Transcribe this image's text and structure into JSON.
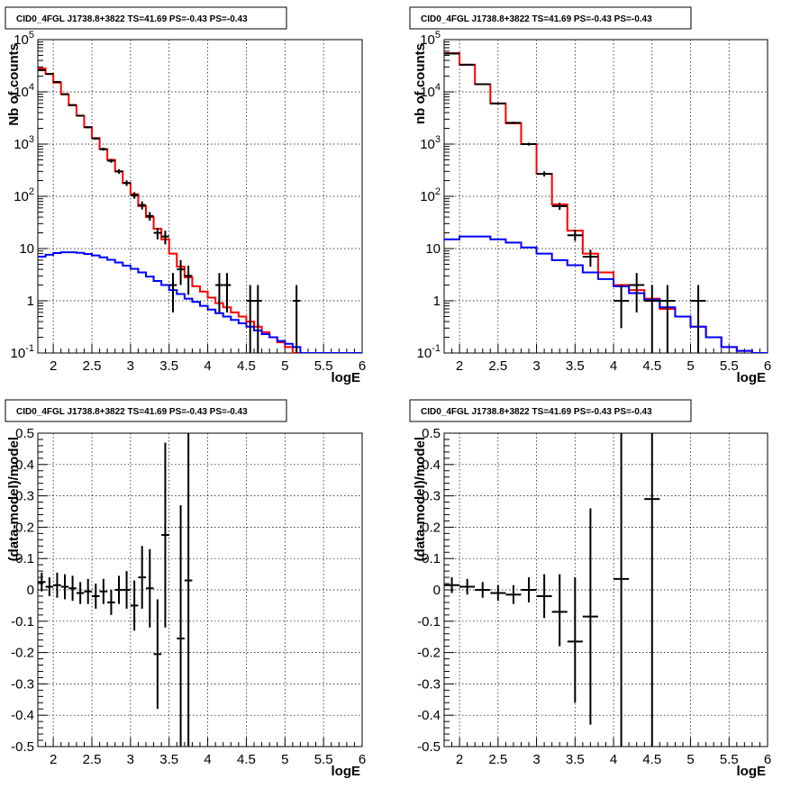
{
  "chart_data": [
    {
      "type": "line",
      "title": "CID0_4FGL J1738.8+3822 TS=41.69 PS=-0.43 PS=-0.43",
      "xlabel": "logE",
      "ylabel": "Nb of counts",
      "xlim": [
        1.8,
        6
      ],
      "ylim": [
        0.1,
        100000
      ],
      "yscale": "log",
      "grid": true,
      "x_ticks": [
        "2",
        "2.5",
        "3",
        "3.5",
        "4",
        "4.5",
        "5",
        "5.5",
        "6"
      ],
      "y_ticks": [
        "10^-1",
        "1",
        "10",
        "10^2",
        "10^3",
        "10^4",
        "10^5"
      ],
      "series": [
        {
          "color": "#ff0000",
          "style": "histogram",
          "bin_edges": [
            1.8,
            1.9,
            2.0,
            2.1,
            2.2,
            2.3,
            2.4,
            2.5,
            2.6,
            2.7,
            2.8,
            2.9,
            3.0,
            3.1,
            3.2,
            3.3,
            3.4,
            3.5,
            3.6,
            3.7,
            3.8,
            3.9,
            4.0,
            4.1,
            4.2,
            4.3,
            4.4,
            4.5,
            4.6,
            4.7,
            4.8,
            4.9,
            5.0,
            5.1,
            5.2,
            5.3,
            5.4,
            5.5,
            5.6,
            5.7,
            5.8,
            5.9,
            6.0
          ],
          "values": [
            28000,
            22000,
            15000,
            9000,
            5500,
            3500,
            2100,
            1300,
            800,
            500,
            300,
            180,
            110,
            65,
            40,
            24,
            15,
            8,
            4.5,
            2.8,
            1.9,
            1.5,
            1.15,
            0.9,
            0.75,
            0.6,
            0.5,
            0.4,
            0.32,
            0.25,
            0.2,
            0.16,
            0.13,
            0.1,
            0.1,
            0.1,
            0.1,
            0.1,
            0.1,
            0.1,
            0.1,
            0.1
          ]
        },
        {
          "color": "#0000ff",
          "style": "histogram",
          "bin_edges": [
            1.8,
            1.9,
            2.0,
            2.1,
            2.2,
            2.3,
            2.4,
            2.5,
            2.6,
            2.7,
            2.8,
            2.9,
            3.0,
            3.1,
            3.2,
            3.3,
            3.4,
            3.5,
            3.6,
            3.7,
            3.8,
            3.9,
            4.0,
            4.1,
            4.2,
            4.3,
            4.4,
            4.5,
            4.6,
            4.7,
            4.8,
            4.9,
            5.0,
            5.1,
            5.2,
            5.3,
            5.4,
            5.5,
            5.6,
            5.7,
            5.8,
            5.9,
            6.0
          ],
          "values": [
            7,
            7.6,
            8.2,
            8.5,
            8.5,
            8.3,
            7.9,
            7.4,
            6.8,
            6.1,
            5.4,
            4.7,
            4.1,
            3.5,
            2.9,
            2.4,
            2.0,
            1.6,
            1.35,
            1.1,
            0.95,
            0.8,
            0.68,
            0.58,
            0.5,
            0.43,
            0.37,
            0.32,
            0.27,
            0.23,
            0.2,
            0.17,
            0.15,
            0.13,
            0.1,
            0.1,
            0.1,
            0.1,
            0.1,
            0.1,
            0.1,
            0.1
          ]
        },
        {
          "color": "#000000",
          "style": "errorbar",
          "points": [
            {
              "x": 1.85,
              "y": 26000,
              "xerr": 0.05,
              "ylo": 25800,
              "yhi": 26200
            },
            {
              "x": 1.95,
              "y": 22000,
              "xerr": 0.05,
              "ylo": 21800,
              "yhi": 22200
            },
            {
              "x": 2.05,
              "y": 15500,
              "xerr": 0.05,
              "ylo": 15300,
              "yhi": 15700
            },
            {
              "x": 2.15,
              "y": 9000,
              "xerr": 0.05,
              "ylo": 8800,
              "yhi": 9200
            },
            {
              "x": 2.25,
              "y": 5600,
              "xerr": 0.05,
              "ylo": 5450,
              "yhi": 5750
            },
            {
              "x": 2.35,
              "y": 3500,
              "xerr": 0.05,
              "ylo": 3380,
              "yhi": 3620
            },
            {
              "x": 2.45,
              "y": 2100,
              "xerr": 0.05,
              "ylo": 2000,
              "yhi": 2200
            },
            {
              "x": 2.55,
              "y": 1280,
              "xerr": 0.05,
              "ylo": 1210,
              "yhi": 1350
            },
            {
              "x": 2.65,
              "y": 800,
              "xerr": 0.05,
              "ylo": 750,
              "yhi": 850
            },
            {
              "x": 2.75,
              "y": 480,
              "xerr": 0.05,
              "ylo": 440,
              "yhi": 520
            },
            {
              "x": 2.85,
              "y": 300,
              "xerr": 0.05,
              "ylo": 270,
              "yhi": 330
            },
            {
              "x": 2.95,
              "y": 180,
              "xerr": 0.05,
              "ylo": 158,
              "yhi": 202
            },
            {
              "x": 3.05,
              "y": 105,
              "xerr": 0.05,
              "ylo": 90,
              "yhi": 120
            },
            {
              "x": 3.15,
              "y": 68,
              "xerr": 0.05,
              "ylo": 56,
              "yhi": 80
            },
            {
              "x": 3.25,
              "y": 42,
              "xerr": 0.05,
              "ylo": 34,
              "yhi": 50
            },
            {
              "x": 3.35,
              "y": 20,
              "xerr": 0.05,
              "ylo": 15,
              "yhi": 25
            },
            {
              "x": 3.45,
              "y": 17,
              "xerr": 0.05,
              "ylo": 12,
              "yhi": 22
            },
            {
              "x": 3.55,
              "y": 2,
              "xerr": 0.05,
              "ylo": 0.6,
              "yhi": 3.4
            },
            {
              "x": 3.65,
              "y": 4,
              "xerr": 0.05,
              "ylo": 2,
              "yhi": 6
            },
            {
              "x": 3.75,
              "y": 3,
              "xerr": 0.05,
              "ylo": 1.3,
              "yhi": 4.7
            },
            {
              "x": 4.15,
              "y": 2,
              "xerr": 0.05,
              "ylo": 0.6,
              "yhi": 3.4
            },
            {
              "x": 4.25,
              "y": 2,
              "xerr": 0.05,
              "ylo": 0.6,
              "yhi": 3.4
            },
            {
              "x": 4.55,
              "y": 1,
              "xerr": 0.05,
              "ylo": 0.1,
              "yhi": 2
            },
            {
              "x": 4.65,
              "y": 1,
              "xerr": 0.05,
              "ylo": 0.1,
              "yhi": 2
            },
            {
              "x": 5.15,
              "y": 1,
              "xerr": 0.05,
              "ylo": 0.1,
              "yhi": 2
            }
          ]
        }
      ]
    },
    {
      "type": "line",
      "title": "CID0_4FGL J1738.8+3822 TS=41.69 PS=-0.43 PS=-0.43",
      "xlabel": "logE",
      "ylabel": "nb of counts",
      "xlim": [
        1.8,
        6
      ],
      "ylim": [
        0.1,
        100000
      ],
      "yscale": "log",
      "grid": true,
      "x_ticks": [
        "2",
        "2.5",
        "3",
        "3.5",
        "4",
        "4.5",
        "5",
        "5.5",
        "6"
      ],
      "y_ticks": [
        "10^-1",
        "1",
        "10",
        "10^2",
        "10^3",
        "10^4",
        "10^5"
      ],
      "series": [
        {
          "color": "#ff0000",
          "style": "histogram",
          "bin_edges": [
            1.8,
            2.0,
            2.2,
            2.4,
            2.6,
            2.8,
            3.0,
            3.2,
            3.4,
            3.6,
            3.8,
            4.0,
            4.2,
            4.4,
            4.6,
            4.8,
            5.0,
            5.2,
            5.4,
            5.6,
            5.8,
            6.0
          ],
          "values": [
            55000,
            33000,
            14000,
            6000,
            2500,
            1000,
            270,
            70,
            22,
            8,
            3.5,
            2,
            1.6,
            1.1,
            0.7,
            0.5,
            0.32,
            0.2,
            0.13,
            0.11,
            0.1
          ]
        },
        {
          "color": "#0000ff",
          "style": "histogram",
          "bin_edges": [
            1.8,
            2.0,
            2.2,
            2.4,
            2.6,
            2.8,
            3.0,
            3.2,
            3.4,
            3.6,
            3.8,
            4.0,
            4.2,
            4.4,
            4.6,
            4.8,
            5.0,
            5.2,
            5.4,
            5.6,
            5.8,
            6.0
          ],
          "values": [
            15,
            17,
            17,
            15,
            13,
            10.5,
            8,
            6,
            4.8,
            3.5,
            2.6,
            1.9,
            1.4,
            1.05,
            0.75,
            0.5,
            0.32,
            0.2,
            0.13,
            0.11,
            0.1
          ]
        },
        {
          "color": "#000000",
          "style": "errorbar",
          "points": [
            {
              "x": 1.9,
              "y": 54000,
              "xerr": 0.1,
              "ylo": 53500,
              "yhi": 54500
            },
            {
              "x": 2.1,
              "y": 33000,
              "xerr": 0.1,
              "ylo": 32600,
              "yhi": 33400
            },
            {
              "x": 2.3,
              "y": 14000,
              "xerr": 0.1,
              "ylo": 13700,
              "yhi": 14300
            },
            {
              "x": 2.5,
              "y": 6000,
              "xerr": 0.1,
              "ylo": 5800,
              "yhi": 6200
            },
            {
              "x": 2.7,
              "y": 2550,
              "xerr": 0.1,
              "ylo": 2430,
              "yhi": 2670
            },
            {
              "x": 2.9,
              "y": 1000,
              "xerr": 0.1,
              "ylo": 940,
              "yhi": 1060
            },
            {
              "x": 3.1,
              "y": 270,
              "xerr": 0.1,
              "ylo": 240,
              "yhi": 300
            },
            {
              "x": 3.3,
              "y": 65,
              "xerr": 0.1,
              "ylo": 55,
              "yhi": 75
            },
            {
              "x": 3.5,
              "y": 18,
              "xerr": 0.1,
              "ylo": 14,
              "yhi": 23
            },
            {
              "x": 3.7,
              "y": 7,
              "xerr": 0.1,
              "ylo": 4.5,
              "yhi": 9.5
            },
            {
              "x": 4.1,
              "y": 1,
              "xerr": 0.1,
              "ylo": 0.3,
              "yhi": 2
            },
            {
              "x": 4.3,
              "y": 2,
              "xerr": 0.1,
              "ylo": 0.6,
              "yhi": 3.4
            },
            {
              "x": 4.5,
              "y": 1,
              "xerr": 0.1,
              "ylo": 0.1,
              "yhi": 2
            },
            {
              "x": 4.7,
              "y": 1,
              "xerr": 0.1,
              "ylo": 0.1,
              "yhi": 2
            },
            {
              "x": 5.1,
              "y": 1,
              "xerr": 0.1,
              "ylo": 0.1,
              "yhi": 2
            }
          ]
        }
      ]
    },
    {
      "type": "scatter",
      "title": "CID0_4FGL J1738.8+3822 TS=41.69 PS=-0.43 PS=-0.43",
      "xlabel": "logE",
      "ylabel": "(data-model)/model",
      "xlim": [
        1.8,
        6
      ],
      "ylim": [
        -0.5,
        0.5
      ],
      "yscale": "linear",
      "grid": true,
      "x_ticks": [
        "2",
        "2.5",
        "3",
        "3.5",
        "4",
        "4.5",
        "5",
        "5.5",
        "6"
      ],
      "y_ticks": [
        "-0.5",
        "-0.4",
        "-0.3",
        "-0.2",
        "-0.1",
        "0",
        "0.1",
        "0.2",
        "0.3",
        "0.4",
        "0.5"
      ],
      "series": [
        {
          "color": "#000000",
          "style": "errorbar",
          "points": [
            {
              "x": 1.85,
              "y": 0.025,
              "xerr": 0.05,
              "ylo": -0.005,
              "yhi": 0.055
            },
            {
              "x": 1.95,
              "y": 0.01,
              "xerr": 0.05,
              "ylo": -0.02,
              "yhi": 0.04
            },
            {
              "x": 2.05,
              "y": 0.015,
              "xerr": 0.05,
              "ylo": -0.025,
              "yhi": 0.055
            },
            {
              "x": 2.15,
              "y": 0.01,
              "xerr": 0.05,
              "ylo": -0.03,
              "yhi": 0.05
            },
            {
              "x": 2.25,
              "y": 0.005,
              "xerr": 0.05,
              "ylo": -0.035,
              "yhi": 0.045
            },
            {
              "x": 2.35,
              "y": -0.01,
              "xerr": 0.05,
              "ylo": -0.045,
              "yhi": 0.025
            },
            {
              "x": 2.45,
              "y": -0.005,
              "xerr": 0.05,
              "ylo": -0.045,
              "yhi": 0.035
            },
            {
              "x": 2.55,
              "y": -0.02,
              "xerr": 0.05,
              "ylo": -0.06,
              "yhi": 0.02
            },
            {
              "x": 2.65,
              "y": -0.005,
              "xerr": 0.05,
              "ylo": -0.045,
              "yhi": 0.035
            },
            {
              "x": 2.75,
              "y": -0.04,
              "xerr": 0.05,
              "ylo": -0.08,
              "yhi": 0.0
            },
            {
              "x": 2.85,
              "y": 0.0,
              "xerr": 0.05,
              "ylo": -0.045,
              "yhi": 0.045
            },
            {
              "x": 2.95,
              "y": 0.0,
              "xerr": 0.05,
              "ylo": -0.06,
              "yhi": 0.06
            },
            {
              "x": 3.05,
              "y": -0.05,
              "xerr": 0.05,
              "ylo": -0.13,
              "yhi": 0.03
            },
            {
              "x": 3.15,
              "y": 0.04,
              "xerr": 0.05,
              "ylo": -0.06,
              "yhi": 0.14
            },
            {
              "x": 3.25,
              "y": 0.005,
              "xerr": 0.05,
              "ylo": -0.12,
              "yhi": 0.13
            },
            {
              "x": 3.35,
              "y": -0.205,
              "xerr": 0.05,
              "ylo": -0.38,
              "yhi": -0.03
            },
            {
              "x": 3.45,
              "y": 0.175,
              "xerr": 0.05,
              "ylo": -0.12,
              "yhi": 0.47
            },
            {
              "x": 3.65,
              "y": -0.155,
              "xerr": 0.05,
              "ylo": -0.5,
              "yhi": 0.27
            },
            {
              "x": 3.75,
              "y": 0.03,
              "xerr": 0.05,
              "ylo": -0.5,
              "yhi": 0.5
            }
          ]
        }
      ]
    },
    {
      "type": "scatter",
      "title": "CID0_4FGL J1738.8+3822 TS=41.69 PS=-0.43 PS=-0.43",
      "xlabel": "logE",
      "ylabel": "(data-model)/model",
      "xlim": [
        1.8,
        6
      ],
      "ylim": [
        -0.5,
        0.5
      ],
      "yscale": "linear",
      "grid": true,
      "x_ticks": [
        "2",
        "2.5",
        "3",
        "3.5",
        "4",
        "4.5",
        "5",
        "5.5",
        "6"
      ],
      "y_ticks": [
        "-0.5",
        "-0.4",
        "-0.3",
        "-0.2",
        "-0.1",
        "0",
        "0.1",
        "0.2",
        "0.3",
        "0.4",
        "0.5"
      ],
      "series": [
        {
          "color": "#000000",
          "style": "errorbar",
          "points": [
            {
              "x": 1.9,
              "y": 0.015,
              "xerr": 0.1,
              "ylo": -0.01,
              "yhi": 0.04
            },
            {
              "x": 2.1,
              "y": 0.01,
              "xerr": 0.1,
              "ylo": -0.015,
              "yhi": 0.035
            },
            {
              "x": 2.3,
              "y": 0.0,
              "xerr": 0.1,
              "ylo": -0.025,
              "yhi": 0.025
            },
            {
              "x": 2.5,
              "y": -0.01,
              "xerr": 0.1,
              "ylo": -0.035,
              "yhi": 0.015
            },
            {
              "x": 2.7,
              "y": -0.015,
              "xerr": 0.1,
              "ylo": -0.045,
              "yhi": 0.015
            },
            {
              "x": 2.9,
              "y": 0.0,
              "xerr": 0.1,
              "ylo": -0.04,
              "yhi": 0.04
            },
            {
              "x": 3.1,
              "y": -0.02,
              "xerr": 0.1,
              "ylo": -0.09,
              "yhi": 0.05
            },
            {
              "x": 3.3,
              "y": -0.07,
              "xerr": 0.1,
              "ylo": -0.18,
              "yhi": 0.05
            },
            {
              "x": 3.5,
              "y": -0.165,
              "xerr": 0.1,
              "ylo": -0.36,
              "yhi": 0.04
            },
            {
              "x": 3.7,
              "y": -0.085,
              "xerr": 0.1,
              "ylo": -0.43,
              "yhi": 0.26
            },
            {
              "x": 4.1,
              "y": 0.035,
              "xerr": 0.1,
              "ylo": -0.5,
              "yhi": 0.5
            },
            {
              "x": 4.5,
              "y": 0.29,
              "xerr": 0.1,
              "ylo": -0.5,
              "yhi": 0.5
            }
          ]
        }
      ]
    }
  ]
}
